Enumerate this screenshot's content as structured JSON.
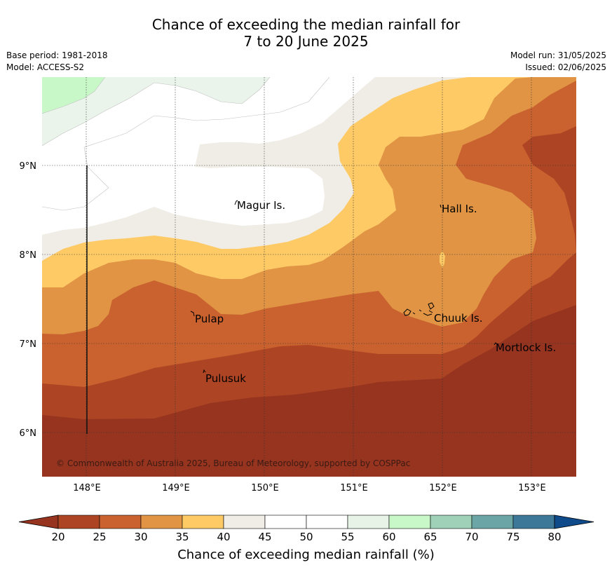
{
  "header": {
    "title_line1": "Chance of exceeding the median rainfall for",
    "title_line2": "7 to 20 June 2025",
    "base_period": "Base period: 1981-2018",
    "model": "Model: ACCESS-S2",
    "model_run": "Model run: 31/05/2025",
    "issued": "Issued: 02/06/2025"
  },
  "map": {
    "lat_ticks": [
      "9°N",
      "8°N",
      "7°N",
      "6°N"
    ],
    "lon_ticks": [
      "148°E",
      "149°E",
      "150°E",
      "151°E",
      "152°E",
      "153°E"
    ],
    "places": [
      "Magur Is.",
      "Hall Is.",
      "Pulap",
      "Chuuk Is.",
      "Mortlock Is.",
      "Pulusuk"
    ],
    "copyright": "© Commonwealth of Australia 2025, Bureau of Meteorology, supported by COSPPac"
  },
  "colorbar": {
    "labels": [
      "20",
      "25",
      "30",
      "35",
      "40",
      "45",
      "50",
      "55",
      "60",
      "65",
      "70",
      "75",
      "80"
    ],
    "colors": [
      "#ad4524",
      "#c9622f",
      "#e09444",
      "#fdca66",
      "#f0ece6",
      "#ffffff",
      "#ffffff",
      "#e8f3e8",
      "#c8f8c8",
      "#9ed1b8",
      "#6ba5a5",
      "#3d7898"
    ],
    "below_color": "#963420",
    "above_color": "#0f4a8a",
    "title": "Chance of exceeding median rainfall (%)"
  }
}
